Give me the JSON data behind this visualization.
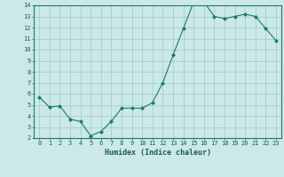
{
  "x": [
    0,
    1,
    2,
    3,
    4,
    5,
    6,
    7,
    8,
    9,
    10,
    11,
    12,
    13,
    14,
    15,
    16,
    17,
    18,
    19,
    20,
    21,
    22,
    23
  ],
  "y": [
    5.7,
    4.8,
    4.9,
    3.7,
    3.5,
    2.2,
    2.6,
    3.5,
    4.7,
    4.7,
    4.7,
    5.2,
    7.0,
    9.5,
    11.9,
    14.3,
    14.3,
    13.0,
    12.8,
    13.0,
    13.2,
    13.0,
    11.9,
    10.8
  ],
  "line_color": "#1a7a6e",
  "marker_color": "#1a7a6e",
  "bg_color": "#cce8e8",
  "grid_color": "#99cccc",
  "xlabel": "Humidex (Indice chaleur)",
  "xlim": [
    -0.5,
    23.5
  ],
  "ylim": [
    2,
    14
  ],
  "yticks": [
    2,
    3,
    4,
    5,
    6,
    7,
    8,
    9,
    10,
    11,
    12,
    13,
    14
  ],
  "xticks": [
    0,
    1,
    2,
    3,
    4,
    5,
    6,
    7,
    8,
    9,
    10,
    11,
    12,
    13,
    14,
    15,
    16,
    17,
    18,
    19,
    20,
    21,
    22,
    23
  ]
}
